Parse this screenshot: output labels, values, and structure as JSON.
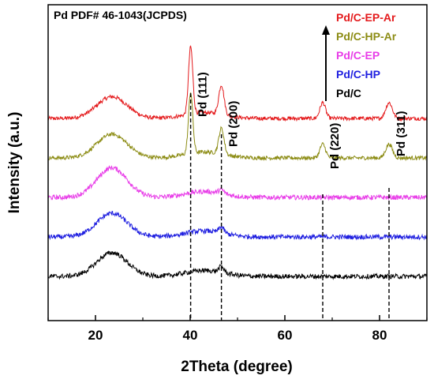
{
  "chart_data": {
    "type": "line",
    "xlabel": "2Theta (degree)",
    "ylabel": "Intensity (a.u.)",
    "xlim": [
      10,
      90
    ],
    "xticks": [
      "20",
      "40",
      "60",
      "80"
    ],
    "y_ticks_shown": false,
    "grid": false,
    "reference_text": "Pd PDF# 46-1043(JCPDS)",
    "legend_position": "top-right",
    "legend_arrow": "up",
    "series": [
      {
        "name": "Pd/C-EP-Ar",
        "color": "#e41a1c",
        "offset": 4.0,
        "hump": 0.55,
        "pd111": 1.7,
        "pd200": 0.75,
        "pd220": 0.4,
        "pd311": 0.4,
        "noise": 0.1
      },
      {
        "name": "Pd/C-HP-Ar",
        "color": "#8c8c14",
        "offset": 3.0,
        "hump": 0.6,
        "pd111": 1.55,
        "pd200": 0.65,
        "pd220": 0.35,
        "pd311": 0.35,
        "noise": 0.1
      },
      {
        "name": "Pd/C-EP",
        "color": "#e83de8",
        "offset": 2.0,
        "hump": 0.75,
        "pd111": 0.0,
        "pd200": 0.1,
        "pd220": 0.0,
        "pd311": 0.0,
        "noise": 0.12
      },
      {
        "name": "Pd/C-HP",
        "color": "#1f1fe0",
        "offset": 1.0,
        "hump": 0.6,
        "pd111": 0.0,
        "pd200": 0.15,
        "pd220": 0.0,
        "pd311": 0.0,
        "noise": 0.12
      },
      {
        "name": "Pd/C",
        "color": "#000000",
        "offset": 0.0,
        "hump": 0.6,
        "pd111": 0.0,
        "pd200": 0.15,
        "pd220": 0.0,
        "pd311": 0.0,
        "noise": 0.12
      }
    ],
    "peaks": [
      {
        "label": "Pd (111)",
        "x": 40.1
      },
      {
        "label": "Pd (200)",
        "x": 46.6
      },
      {
        "label": "Pd (220)",
        "x": 68.0
      },
      {
        "label": "Pd (311)",
        "x": 82.0
      }
    ]
  }
}
